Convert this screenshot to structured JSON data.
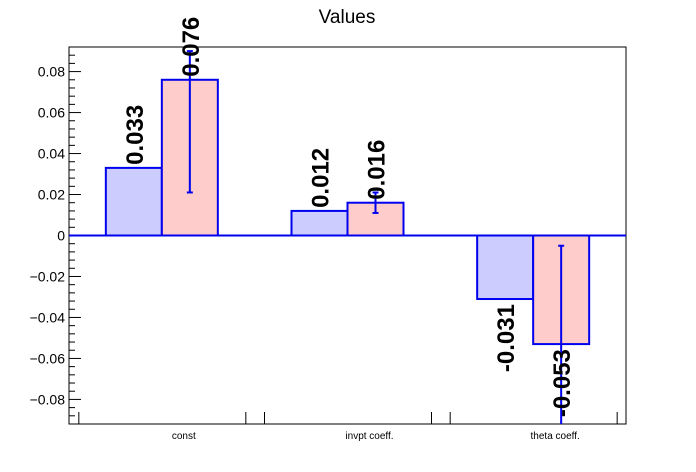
{
  "chart_data": {
    "type": "bar",
    "title": "Values",
    "xlabel": "",
    "ylabel": "",
    "categories": [
      "const",
      "invpt coeff.",
      "theta coeff."
    ],
    "ylim": [
      -0.092,
      0.092
    ],
    "yticks": [
      "0.08",
      "0.06",
      "0.04",
      "0.02",
      "0",
      "−0.02",
      "−0.04",
      "−0.06",
      "−0.08"
    ],
    "grid": false,
    "series": [
      {
        "values": [
          0.033,
          0.012,
          -0.031
        ],
        "labels": [
          "0.033",
          "0.012",
          "-0.031"
        ],
        "fill": "#ccccff",
        "errors": [
          null,
          null,
          null
        ]
      },
      {
        "values": [
          0.076,
          0.016,
          -0.053
        ],
        "labels": [
          "0.076",
          "0.016",
          "-0.053"
        ],
        "fill": "#ffcccc",
        "errors": [
          [
            0.021,
            0.09
          ],
          [
            0.011,
            0.021
          ],
          [
            -0.092,
            -0.005
          ]
        ]
      }
    ],
    "colors": {
      "outline": "#0000ee",
      "axis": "#000000",
      "zero_line": "#0000ee"
    }
  }
}
